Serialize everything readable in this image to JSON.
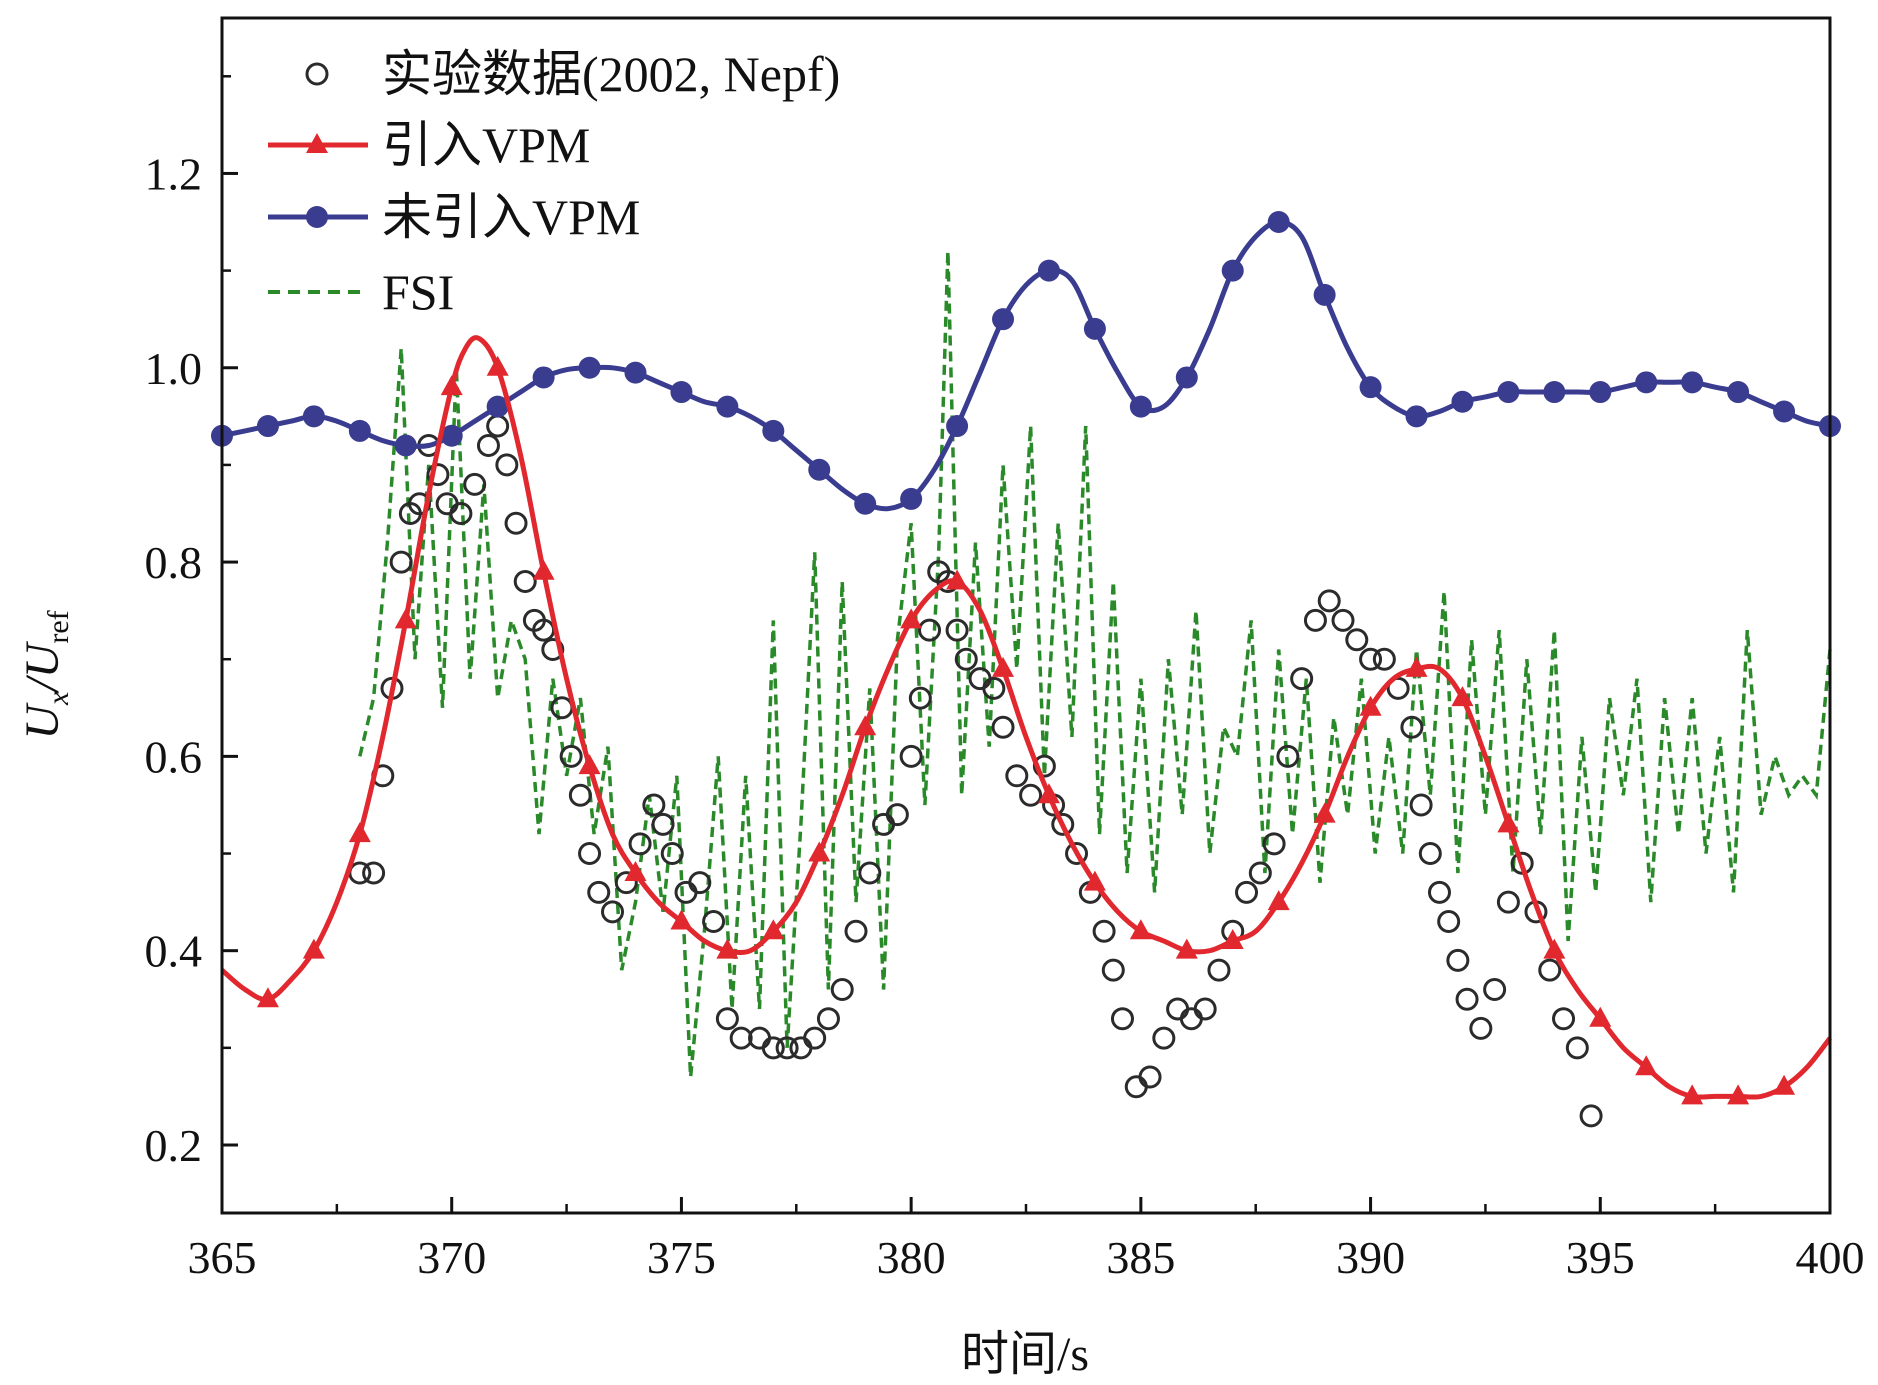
{
  "chart_data": {
    "type": "line",
    "xlabel": "时间/s",
    "ylabel_main": "U",
    "ylabel_sub_x": "x",
    "ylabel_slash": "/U",
    "ylabel_sub_ref": "ref",
    "xlim": [
      365,
      400
    ],
    "ylim": [
      0.13,
      1.36
    ],
    "xticks": [
      365,
      370,
      375,
      380,
      385,
      390,
      395,
      400
    ],
    "xtick_labels": [
      "365",
      "370",
      "375",
      "380",
      "385",
      "390",
      "395",
      "400"
    ],
    "yticks": [
      0.2,
      0.4,
      0.6,
      0.8,
      1.0,
      1.2
    ],
    "ytick_labels": [
      "0.2",
      "0.4",
      "0.6",
      "0.8",
      "1.0",
      "1.2"
    ],
    "grid": false,
    "legend_position": "top-left",
    "series": [
      {
        "name": "实验数据(2002, Nepf)",
        "style": "open-circle",
        "color": "#2b2b2b",
        "x": [
          368.0,
          368.3,
          368.5,
          368.7,
          368.9,
          369.1,
          369.3,
          369.5,
          369.7,
          369.9,
          370.2,
          370.5,
          370.8,
          371.0,
          371.2,
          371.4,
          371.6,
          371.8,
          372.0,
          372.2,
          372.4,
          372.6,
          372.8,
          373.0,
          373.2,
          373.5,
          373.8,
          374.1,
          374.4,
          374.6,
          374.8,
          375.1,
          375.4,
          375.7,
          376.0,
          376.3,
          376.7,
          377.0,
          377.3,
          377.6,
          377.9,
          378.2,
          378.5,
          378.8,
          379.1,
          379.4,
          379.7,
          380.0,
          380.2,
          380.4,
          380.6,
          380.8,
          381.0,
          381.2,
          381.5,
          381.8,
          382.0,
          382.3,
          382.6,
          382.9,
          383.1,
          383.3,
          383.6,
          383.9,
          384.2,
          384.4,
          384.6,
          384.9,
          385.2,
          385.5,
          385.8,
          386.1,
          386.4,
          386.7,
          387.0,
          387.3,
          387.6,
          387.9,
          388.2,
          388.5,
          388.8,
          389.1,
          389.4,
          389.7,
          390.0,
          390.3,
          390.6,
          390.9,
          391.1,
          391.3,
          391.5,
          391.7,
          391.9,
          392.1,
          392.4,
          392.7,
          393.0,
          393.3,
          393.6,
          393.9,
          394.2,
          394.5,
          394.8
        ],
        "values": [
          0.48,
          0.48,
          0.58,
          0.67,
          0.8,
          0.85,
          0.86,
          0.92,
          0.89,
          0.86,
          0.85,
          0.88,
          0.92,
          0.94,
          0.9,
          0.84,
          0.78,
          0.74,
          0.73,
          0.71,
          0.65,
          0.6,
          0.56,
          0.5,
          0.46,
          0.44,
          0.47,
          0.51,
          0.55,
          0.53,
          0.5,
          0.46,
          0.47,
          0.43,
          0.33,
          0.31,
          0.31,
          0.3,
          0.3,
          0.3,
          0.31,
          0.33,
          0.36,
          0.42,
          0.48,
          0.53,
          0.54,
          0.6,
          0.66,
          0.73,
          0.79,
          0.78,
          0.73,
          0.7,
          0.68,
          0.67,
          0.63,
          0.58,
          0.56,
          0.59,
          0.55,
          0.53,
          0.5,
          0.46,
          0.42,
          0.38,
          0.33,
          0.26,
          0.27,
          0.31,
          0.34,
          0.33,
          0.34,
          0.38,
          0.42,
          0.46,
          0.48,
          0.51,
          0.6,
          0.68,
          0.74,
          0.76,
          0.74,
          0.72,
          0.7,
          0.7,
          0.67,
          0.63,
          0.55,
          0.5,
          0.46,
          0.43,
          0.39,
          0.35,
          0.32,
          0.36,
          0.45,
          0.49,
          0.44,
          0.38,
          0.33,
          0.3,
          0.23
        ]
      },
      {
        "name": "引入VPM",
        "style": "line-triangle",
        "color": "#e0282e",
        "x": [
          365,
          365.5,
          366,
          366.5,
          367,
          367.5,
          368,
          368.5,
          369,
          369.5,
          370,
          370.3,
          370.6,
          371,
          371.5,
          372,
          372.5,
          373,
          373.5,
          374,
          374.5,
          375,
          375.5,
          376,
          376.5,
          377,
          377.5,
          378,
          378.5,
          379,
          379.5,
          380,
          380.5,
          381,
          381.5,
          382,
          382.5,
          383,
          383.5,
          384,
          384.5,
          385,
          385.5,
          386,
          386.5,
          387,
          387.5,
          388,
          388.5,
          389,
          389.5,
          390,
          390.5,
          391,
          391.5,
          392,
          392.5,
          393,
          393.5,
          394,
          394.5,
          395,
          395.5,
          396,
          396.5,
          397,
          397.5,
          398,
          398.5,
          399,
          399.5,
          400
        ],
        "values": [
          0.38,
          0.36,
          0.35,
          0.37,
          0.4,
          0.45,
          0.52,
          0.62,
          0.74,
          0.87,
          0.98,
          1.02,
          1.03,
          1.0,
          0.91,
          0.79,
          0.68,
          0.59,
          0.52,
          0.48,
          0.45,
          0.43,
          0.41,
          0.4,
          0.4,
          0.42,
          0.45,
          0.5,
          0.56,
          0.63,
          0.69,
          0.74,
          0.77,
          0.78,
          0.75,
          0.69,
          0.62,
          0.56,
          0.51,
          0.47,
          0.44,
          0.42,
          0.41,
          0.4,
          0.4,
          0.41,
          0.42,
          0.45,
          0.49,
          0.54,
          0.6,
          0.65,
          0.68,
          0.69,
          0.69,
          0.66,
          0.6,
          0.53,
          0.46,
          0.4,
          0.36,
          0.33,
          0.3,
          0.28,
          0.26,
          0.25,
          0.25,
          0.25,
          0.25,
          0.26,
          0.28,
          0.31
        ],
        "marker_x": [
          366,
          367,
          368,
          369,
          370,
          371,
          372,
          373,
          374,
          375,
          376,
          377,
          378,
          379,
          380,
          381,
          382,
          383,
          384,
          385,
          386,
          387,
          388,
          389,
          390,
          391,
          392,
          393,
          394,
          395,
          396,
          397,
          398,
          399
        ]
      },
      {
        "name": "未引入VPM",
        "style": "line-dot",
        "color": "#3a3c8f",
        "x": [
          365,
          365.5,
          366,
          366.5,
          367,
          367.5,
          368,
          368.5,
          369,
          369.5,
          370,
          370.5,
          371,
          371.5,
          372,
          372.5,
          373,
          373.5,
          374,
          374.5,
          375,
          375.5,
          376,
          376.5,
          377,
          377.5,
          378,
          378.5,
          379,
          379.5,
          380,
          380.5,
          381,
          381.5,
          382,
          382.5,
          383,
          383.5,
          384,
          384.5,
          385,
          385.5,
          386,
          386.5,
          387,
          387.5,
          388,
          388.5,
          389,
          389.5,
          390,
          390.5,
          391,
          391.5,
          392,
          392.5,
          393,
          393.5,
          394,
          394.5,
          395,
          395.5,
          396,
          396.5,
          397,
          397.5,
          398,
          398.5,
          399,
          399.5,
          400
        ],
        "values": [
          0.93,
          0.935,
          0.94,
          0.945,
          0.95,
          0.945,
          0.935,
          0.925,
          0.92,
          0.92,
          0.93,
          0.945,
          0.96,
          0.975,
          0.99,
          0.998,
          1.0,
          1.0,
          0.995,
          0.985,
          0.975,
          0.965,
          0.96,
          0.95,
          0.935,
          0.915,
          0.895,
          0.875,
          0.86,
          0.855,
          0.865,
          0.895,
          0.94,
          0.995,
          1.05,
          1.085,
          1.1,
          1.09,
          1.04,
          0.995,
          0.96,
          0.96,
          0.99,
          1.04,
          1.1,
          1.135,
          1.15,
          1.135,
          1.075,
          1.02,
          0.98,
          0.96,
          0.95,
          0.955,
          0.965,
          0.97,
          0.975,
          0.975,
          0.975,
          0.975,
          0.975,
          0.98,
          0.985,
          0.985,
          0.985,
          0.98,
          0.975,
          0.965,
          0.955,
          0.945,
          0.94
        ],
        "marker_x": [
          365,
          366,
          367,
          368,
          369,
          370,
          371,
          372,
          373,
          374,
          375,
          376,
          377,
          378,
          379,
          380,
          381,
          382,
          383,
          384,
          385,
          386,
          387,
          388,
          389,
          390,
          391,
          392,
          393,
          394,
          395,
          396,
          397,
          398,
          399,
          400
        ]
      },
      {
        "name": "FSI",
        "style": "dashed",
        "color": "#2a8a2a",
        "x": [
          368.0,
          368.3,
          368.6,
          368.9,
          369.2,
          369.5,
          369.8,
          370.1,
          370.4,
          370.7,
          371.0,
          371.3,
          371.6,
          371.9,
          372.2,
          372.5,
          372.8,
          373.1,
          373.4,
          373.7,
          374.0,
          374.3,
          374.6,
          374.9,
          375.2,
          375.5,
          375.8,
          376.1,
          376.4,
          376.7,
          377.0,
          377.3,
          377.6,
          377.9,
          378.2,
          378.5,
          378.8,
          379.1,
          379.4,
          379.7,
          380.0,
          380.3,
          380.6,
          380.8,
          381.1,
          381.4,
          381.7,
          382.0,
          382.3,
          382.6,
          382.9,
          383.2,
          383.5,
          383.8,
          384.1,
          384.4,
          384.7,
          385.0,
          385.3,
          385.6,
          385.9,
          386.2,
          386.5,
          386.8,
          387.1,
          387.4,
          387.7,
          388.0,
          388.3,
          388.6,
          388.9,
          389.2,
          389.5,
          389.8,
          390.1,
          390.4,
          390.7,
          391.0,
          391.3,
          391.6,
          391.9,
          392.2,
          392.5,
          392.8,
          393.1,
          393.4,
          393.7,
          394.0,
          394.3,
          394.6,
          394.9,
          395.2,
          395.5,
          395.8,
          396.1,
          396.4,
          396.7,
          397.0,
          397.3,
          397.6,
          397.9,
          398.2,
          398.5,
          398.8,
          399.1,
          399.4,
          399.7,
          400.0
        ],
        "values": [
          0.6,
          0.66,
          0.82,
          1.02,
          0.7,
          0.9,
          0.65,
          1.0,
          0.68,
          0.88,
          0.66,
          0.74,
          0.7,
          0.52,
          0.68,
          0.58,
          0.66,
          0.52,
          0.61,
          0.38,
          0.45,
          0.56,
          0.44,
          0.58,
          0.27,
          0.42,
          0.6,
          0.34,
          0.58,
          0.34,
          0.74,
          0.3,
          0.53,
          0.81,
          0.36,
          0.78,
          0.45,
          0.67,
          0.36,
          0.72,
          0.84,
          0.55,
          0.81,
          1.12,
          0.56,
          0.82,
          0.61,
          0.9,
          0.69,
          0.94,
          0.58,
          0.84,
          0.62,
          0.94,
          0.52,
          0.78,
          0.48,
          0.68,
          0.46,
          0.7,
          0.54,
          0.75,
          0.5,
          0.63,
          0.6,
          0.74,
          0.48,
          0.71,
          0.52,
          0.68,
          0.47,
          0.64,
          0.54,
          0.68,
          0.5,
          0.62,
          0.5,
          0.71,
          0.56,
          0.77,
          0.48,
          0.72,
          0.54,
          0.73,
          0.48,
          0.7,
          0.52,
          0.73,
          0.41,
          0.62,
          0.46,
          0.66,
          0.56,
          0.68,
          0.45,
          0.66,
          0.52,
          0.66,
          0.5,
          0.62,
          0.46,
          0.73,
          0.54,
          0.6,
          0.56,
          0.58,
          0.56,
          0.71
        ]
      }
    ]
  }
}
